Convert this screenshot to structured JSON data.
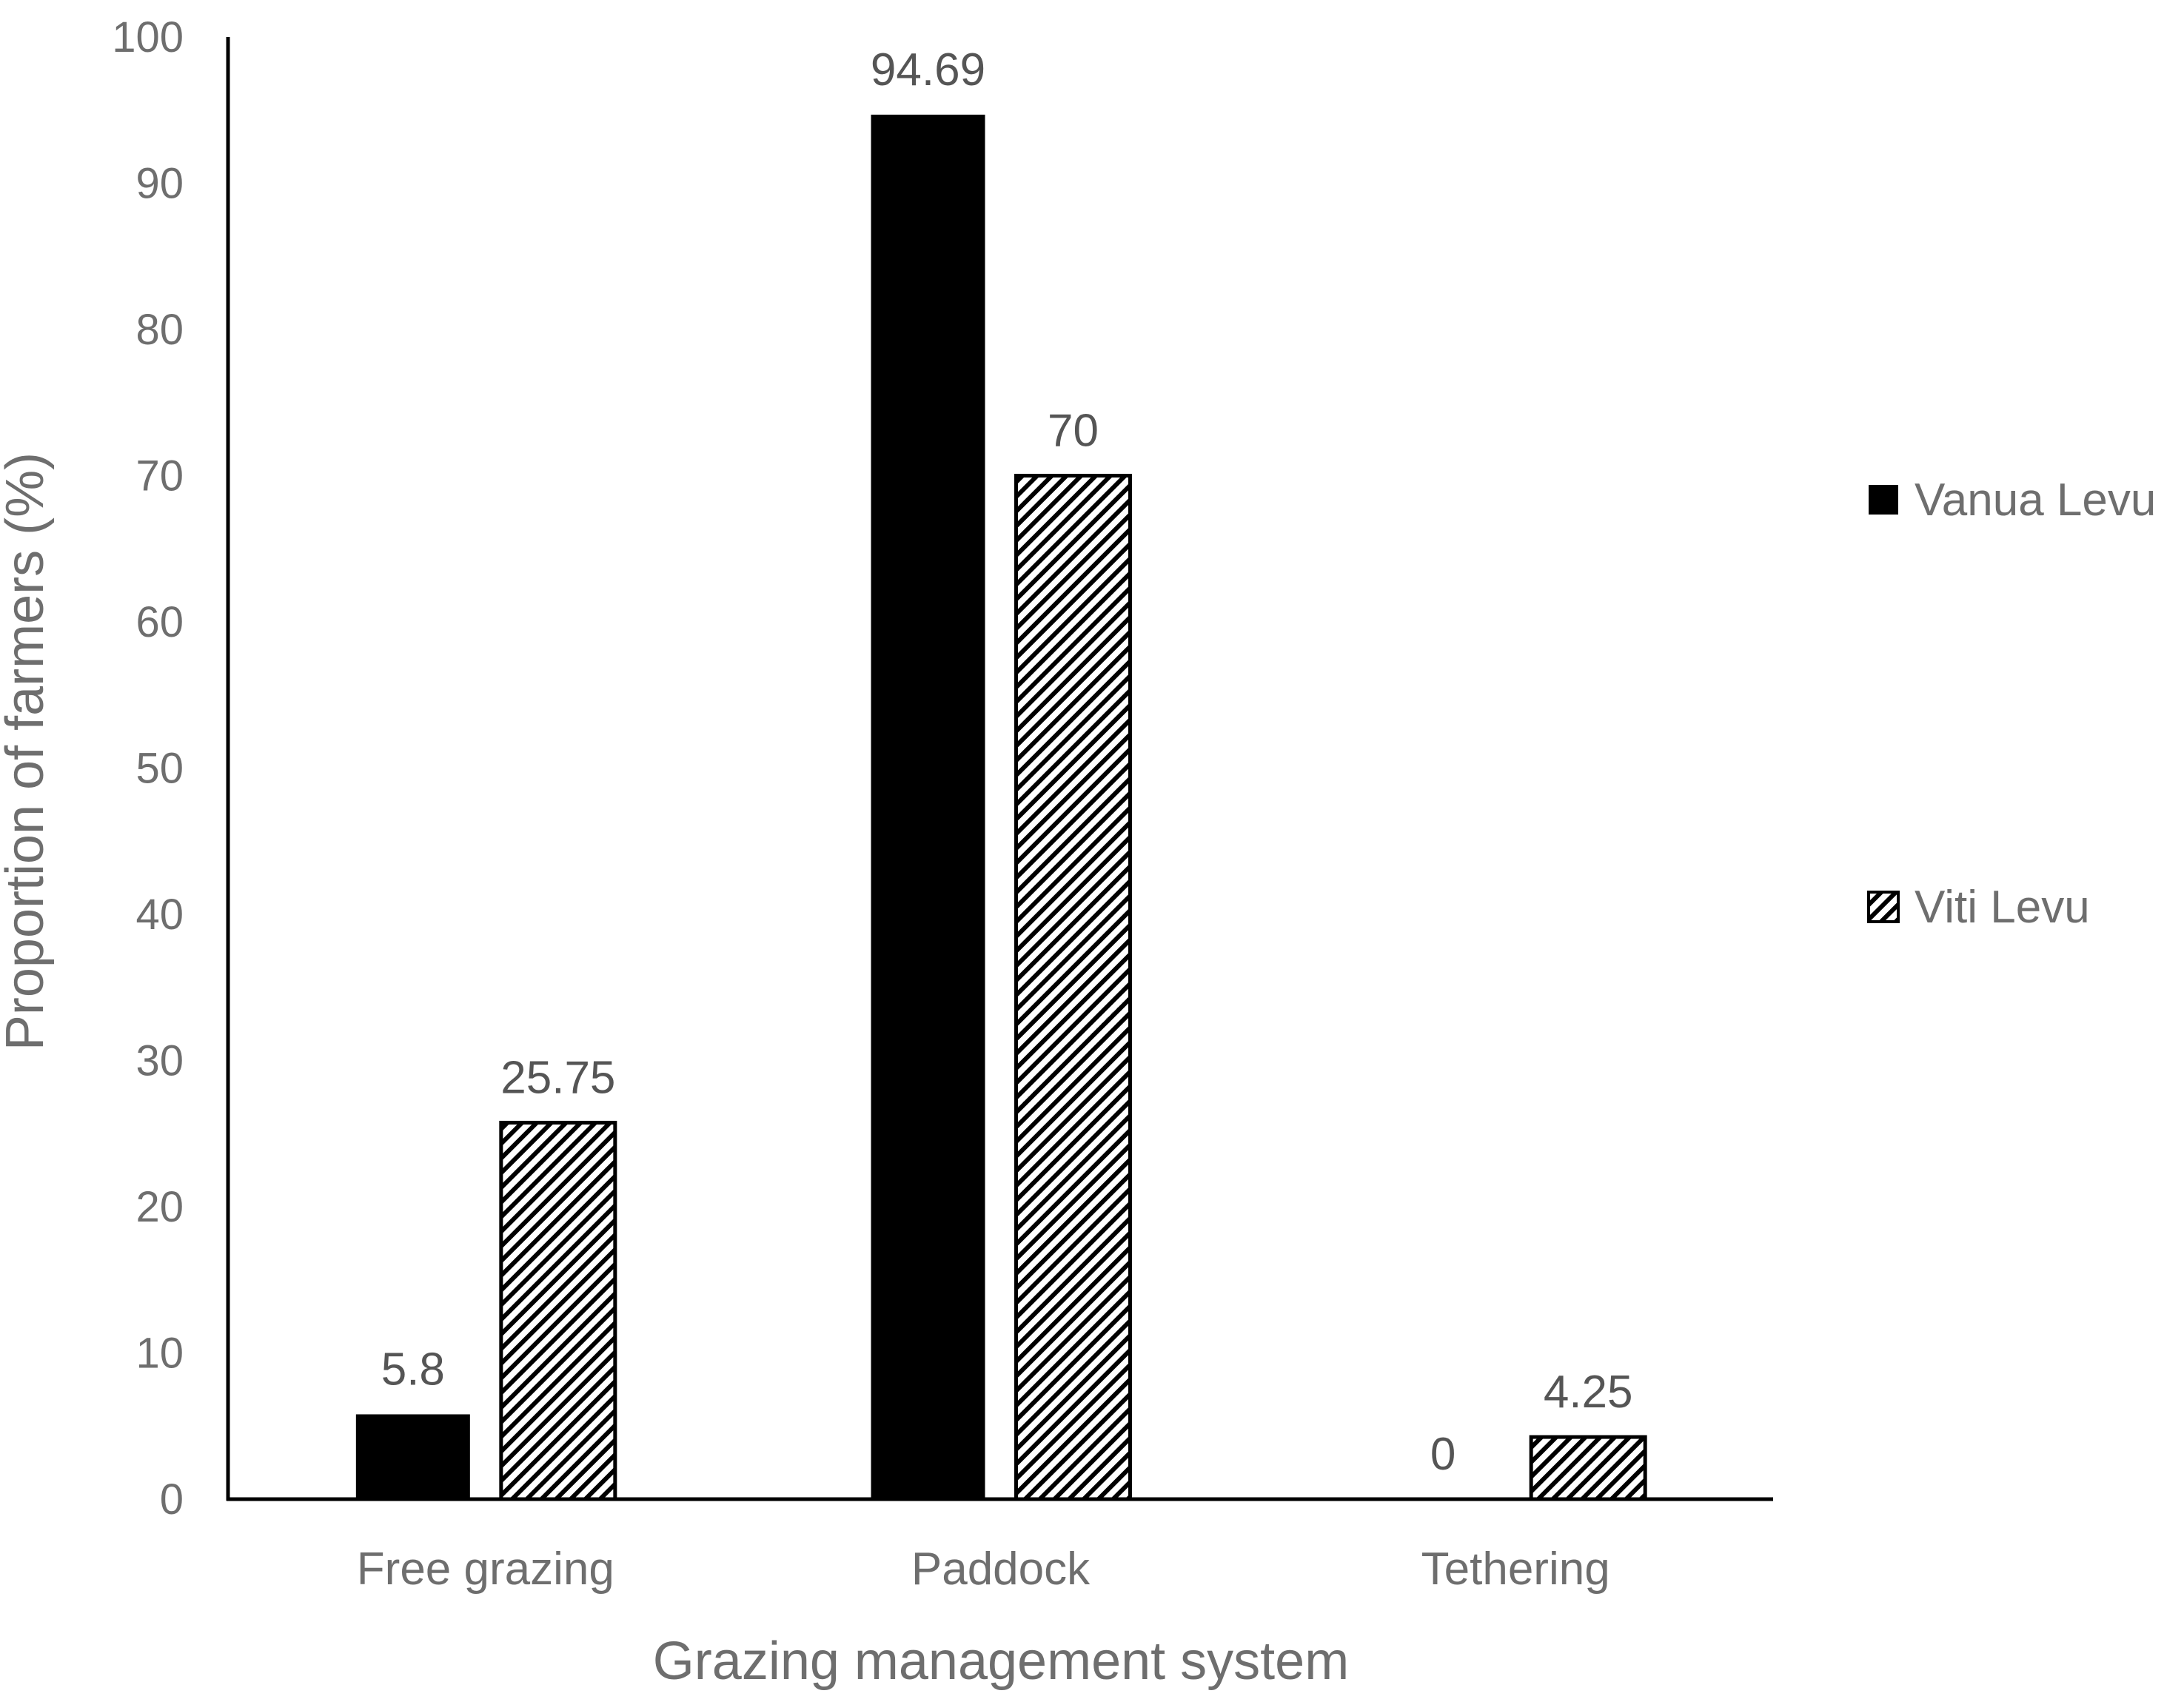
{
  "chart_data": {
    "type": "bar",
    "title": "",
    "xlabel": "Grazing management system",
    "ylabel": "Proportion of farmers (%)",
    "ylim": [
      0,
      100
    ],
    "yticks": [
      0,
      10,
      20,
      30,
      40,
      50,
      60,
      70,
      80,
      90,
      100
    ],
    "grid": false,
    "legend_position": "right",
    "categories": [
      "Free grazing",
      "Paddock",
      "Tethering"
    ],
    "series": [
      {
        "name": "Vanua Levu",
        "values": [
          5.8,
          94.69,
          0
        ],
        "labels": [
          "5.8",
          "94.69",
          "0"
        ],
        "fill": "solid-black"
      },
      {
        "name": "Viti Levu",
        "values": [
          25.75,
          70,
          4.25
        ],
        "labels": [
          "25.75",
          "70",
          "4.25"
        ],
        "fill": "diagonal-hatch"
      }
    ],
    "colors": {
      "axis": "#000000",
      "text": "#6e6e6e",
      "bar_solid": "#000000",
      "hatch": "#000000",
      "hatch_bg": "#ffffff"
    }
  }
}
